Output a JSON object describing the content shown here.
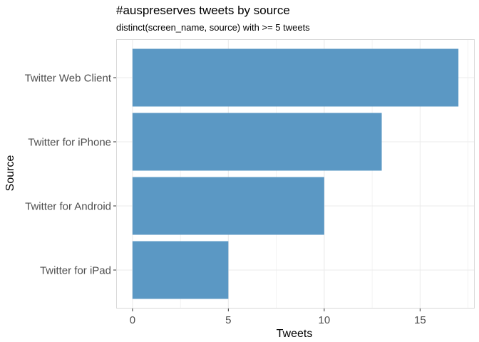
{
  "chart_data": {
    "type": "bar",
    "orientation": "horizontal",
    "title": "#auspreserves tweets by source",
    "subtitle": "distinct(screen_name, source) with >= 5 tweets",
    "xlabel": "Tweets",
    "ylabel": "Source",
    "categories": [
      "Twitter Web Client",
      "Twitter for iPhone",
      "Twitter for Android",
      "Twitter for iPad"
    ],
    "values": [
      17,
      13,
      10,
      5
    ],
    "xlim": [
      -0.85,
      17.85
    ],
    "xticks": [
      0,
      5,
      10,
      15
    ],
    "x_tick_labels": [
      "0",
      "5",
      "10",
      "15"
    ],
    "grid": true,
    "bar_color": "#5b98c4",
    "grid_color": "#ebebeb",
    "panel_border_color": "#d9d9d9"
  }
}
